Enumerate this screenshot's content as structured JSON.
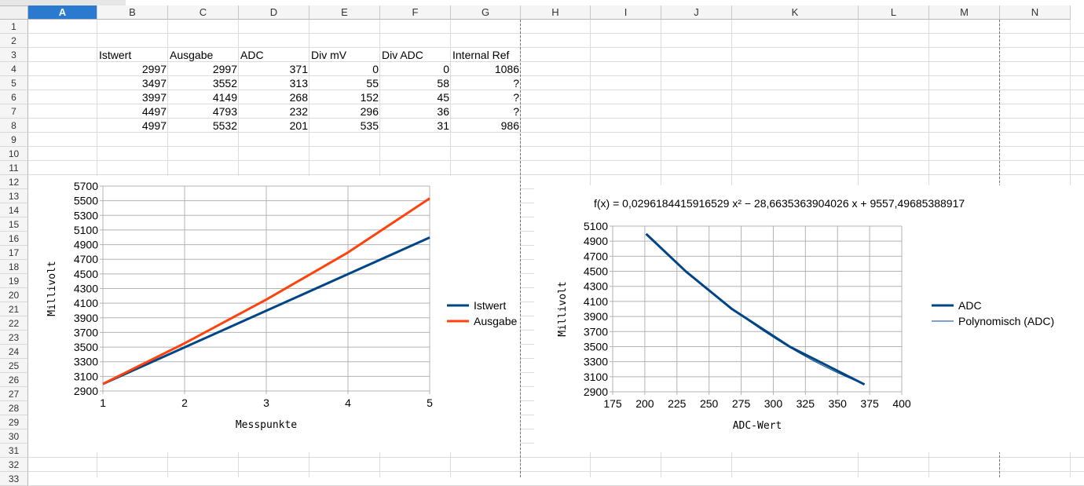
{
  "columns": [
    "A",
    "B",
    "C",
    "D",
    "E",
    "F",
    "G",
    "H",
    "I",
    "J",
    "K",
    "L",
    "M",
    "N"
  ],
  "rows": [
    "1",
    "2",
    "3",
    "4",
    "5",
    "6",
    "7",
    "8",
    "9",
    "10",
    "11",
    "12",
    "13",
    "14",
    "15",
    "16",
    "17",
    "18",
    "19",
    "20",
    "21",
    "22",
    "23",
    "24",
    "25",
    "26",
    "27",
    "28",
    "29",
    "30",
    "31",
    "32",
    "33"
  ],
  "table": {
    "headers": [
      "Istwert",
      "Ausgabe",
      "ADC",
      "Div mV",
      "Div ADC",
      "Internal Ref"
    ],
    "rows": [
      [
        "2997",
        "2997",
        "371",
        "0",
        "0",
        "1086"
      ],
      [
        "3497",
        "3552",
        "313",
        "55",
        "58",
        "?"
      ],
      [
        "3997",
        "4149",
        "268",
        "152",
        "45",
        "?"
      ],
      [
        "4497",
        "4793",
        "232",
        "296",
        "36",
        "?"
      ],
      [
        "4997",
        "5532",
        "201",
        "535",
        "31",
        "986"
      ]
    ]
  },
  "chart_data": [
    {
      "type": "line",
      "x": [
        1,
        2,
        3,
        4,
        5
      ],
      "xlabel": "Messpunkte",
      "ylabel": "Millivolt",
      "xlim": [
        1,
        5
      ],
      "ylim": [
        2900,
        5700
      ],
      "yticks": [
        2900,
        3100,
        3300,
        3500,
        3700,
        3900,
        4100,
        4300,
        4500,
        4700,
        4900,
        5100,
        5300,
        5500,
        5700
      ],
      "xticks": [
        1,
        2,
        3,
        4,
        5
      ],
      "grid": true,
      "legend_position": "right",
      "series": [
        {
          "name": "Istwert",
          "color": "#004586",
          "values": [
            2997,
            3497,
            3997,
            4497,
            4997
          ]
        },
        {
          "name": "Ausgabe",
          "color": "#ff420e",
          "values": [
            2997,
            3552,
            4149,
            4793,
            5532
          ]
        }
      ]
    },
    {
      "type": "line",
      "title": "f(x) = 0,0296184415916529 x² − 28,6635363904026 x + 9557,49685388917",
      "xlabel": "ADC-Wert",
      "ylabel": "Millivolt",
      "xlim": [
        175,
        400
      ],
      "ylim": [
        2900,
        5100
      ],
      "xticks": [
        175,
        200,
        225,
        250,
        275,
        300,
        325,
        350,
        375,
        400
      ],
      "yticks": [
        2900,
        3100,
        3300,
        3500,
        3700,
        3900,
        4100,
        4300,
        4500,
        4700,
        4900,
        5100
      ],
      "grid": true,
      "legend_position": "right",
      "series": [
        {
          "name": "ADC",
          "color": "#004586",
          "x": [
            371,
            313,
            268,
            232,
            201
          ],
          "values": [
            2997,
            3497,
            3997,
            4497,
            4997
          ]
        },
        {
          "name": "Polynomisch (ADC)",
          "color": "#004586",
          "trendline": true,
          "coefficients": [
            0.0296184415916529,
            -28.6635363904026,
            9557.49685388917
          ]
        }
      ]
    }
  ]
}
